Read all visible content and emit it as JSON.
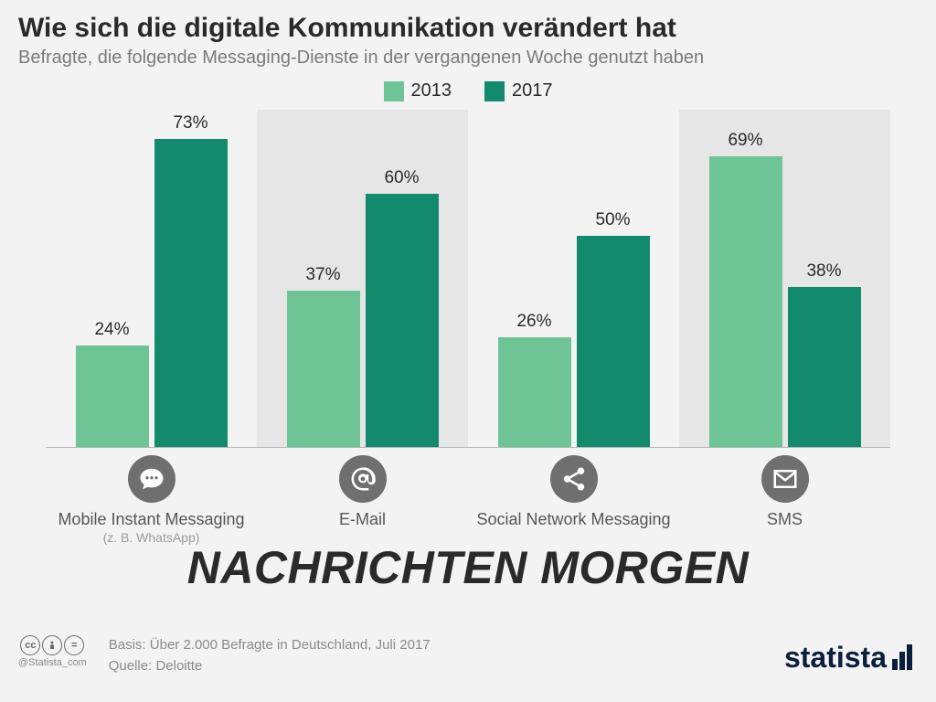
{
  "title": "Wie sich die digitale Kommunikation verändert hat",
  "subtitle": "Befragte, die folgende Messaging-Dienste in der vergangenen Woche genutzt haben",
  "legend": {
    "items": [
      {
        "label": "2013",
        "color": "#6ec495"
      },
      {
        "label": "2017",
        "color": "#128a6b"
      }
    ]
  },
  "chart": {
    "type": "grouped-bar",
    "ylim": [
      0,
      80
    ],
    "background_alt": "#e6e6e6",
    "axis_color": "#b8b8b8",
    "categories": [
      {
        "label": "Mobile Instant Messaging",
        "sublabel": "(z. B. WhatsApp)",
        "icon": "chat",
        "shaded": false,
        "bars": [
          {
            "value": 24,
            "label": "24%",
            "color": "#6ec495"
          },
          {
            "value": 73,
            "label": "73%",
            "color": "#128a6b"
          }
        ]
      },
      {
        "label": "E-Mail",
        "sublabel": "",
        "icon": "at",
        "shaded": true,
        "bars": [
          {
            "value": 37,
            "label": "37%",
            "color": "#6ec495"
          },
          {
            "value": 60,
            "label": "60%",
            "color": "#128a6b"
          }
        ]
      },
      {
        "label": "Social Network Messaging",
        "sublabel": "",
        "icon": "share",
        "shaded": false,
        "bars": [
          {
            "value": 26,
            "label": "26%",
            "color": "#6ec495"
          },
          {
            "value": 50,
            "label": "50%",
            "color": "#128a6b"
          }
        ]
      },
      {
        "label": "SMS",
        "sublabel": "",
        "icon": "mail",
        "shaded": true,
        "bars": [
          {
            "value": 69,
            "label": "69%",
            "color": "#6ec495"
          },
          {
            "value": 38,
            "label": "38%",
            "color": "#128a6b"
          }
        ]
      }
    ]
  },
  "overlay_text": "NACHRICHTEN MORGEN",
  "footer": {
    "cc_handle": "@Statista_com",
    "basis": "Basis: Über 2.000 Befragte in Deutschland, Juli 2017",
    "quelle": "Quelle: Deloitte"
  },
  "brand": "statista",
  "icon_circle_bg": "#6f6f6f",
  "colors": {
    "title": "#2a2a2a",
    "subtitle": "#7a7a7a",
    "page_bg": "#f3f3f3",
    "brand": "#0b1e3d"
  }
}
